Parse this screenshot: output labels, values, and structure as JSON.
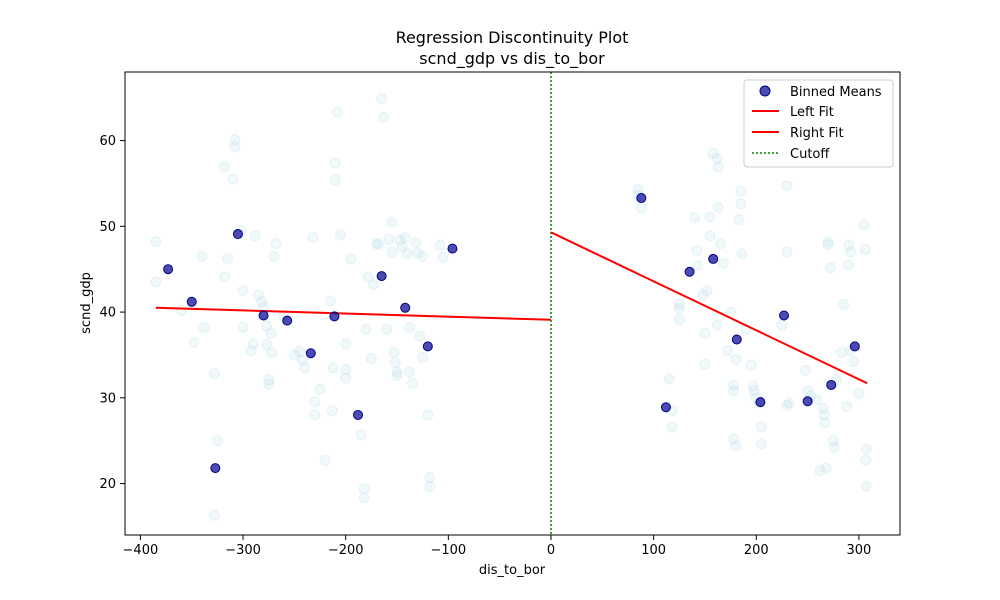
{
  "chart_data": {
    "type": "scatter",
    "title": "Regression Discontinuity Plot",
    "subtitle": "scnd_gdp vs dis_to_bor",
    "xlabel": "dis_to_bor",
    "ylabel": "scnd_gdp",
    "xlim": [
      -415,
      340
    ],
    "ylim": [
      14,
      68
    ],
    "xticks": [
      -400,
      -300,
      -200,
      -100,
      0,
      100,
      200,
      300
    ],
    "yticks": [
      20,
      30,
      40,
      50,
      60
    ],
    "grid": false,
    "legend_position": "top-right",
    "cutoff": 0,
    "raw_points": [
      [
        -385,
        48.2
      ],
      [
        -385,
        43.5
      ],
      [
        -360,
        40.2
      ],
      [
        -348,
        36.5
      ],
      [
        -340,
        46.5
      ],
      [
        -338,
        38.2
      ],
      [
        -328,
        32.8
      ],
      [
        -328,
        16.3
      ],
      [
        -325,
        25.0
      ],
      [
        -318,
        57.0
      ],
      [
        -318,
        44.1
      ],
      [
        -315,
        46.2
      ],
      [
        -310,
        55.5
      ],
      [
        -308,
        60.1
      ],
      [
        -308,
        59.3
      ],
      [
        -302,
        49.5
      ],
      [
        -300,
        42.5
      ],
      [
        -300,
        38.2
      ],
      [
        -292,
        35.5
      ],
      [
        -290,
        36.3
      ],
      [
        -288,
        48.9
      ],
      [
        -285,
        42.0
      ],
      [
        -282,
        41.2
      ],
      [
        -280,
        40.6
      ],
      [
        -277,
        38.4
      ],
      [
        -277,
        36.2
      ],
      [
        -275,
        32.1
      ],
      [
        -275,
        31.6
      ],
      [
        -273,
        37.5
      ],
      [
        -272,
        35.3
      ],
      [
        -270,
        46.5
      ],
      [
        -268,
        48.0
      ],
      [
        -260,
        39.5
      ],
      [
        -250,
        35.0
      ],
      [
        -245,
        35.4
      ],
      [
        -242,
        34.4
      ],
      [
        -240,
        33.5
      ],
      [
        -232,
        48.7
      ],
      [
        -230,
        29.5
      ],
      [
        -230,
        28.0
      ],
      [
        -225,
        31.0
      ],
      [
        -220,
        22.7
      ],
      [
        -215,
        41.3
      ],
      [
        -213,
        28.5
      ],
      [
        -212,
        33.5
      ],
      [
        -210,
        57.4
      ],
      [
        -210,
        55.4
      ],
      [
        -208,
        63.3
      ],
      [
        -205,
        49.0
      ],
      [
        -200,
        36.3
      ],
      [
        -200,
        33.3
      ],
      [
        -200,
        32.3
      ],
      [
        -195,
        46.2
      ],
      [
        -185,
        25.7
      ],
      [
        -182,
        19.4
      ],
      [
        -182,
        18.3
      ],
      [
        -180,
        38.0
      ],
      [
        -178,
        44.1
      ],
      [
        -175,
        34.6
      ],
      [
        -173,
        43.2
      ],
      [
        -170,
        48.0
      ],
      [
        -168,
        47.9
      ],
      [
        -165,
        64.9
      ],
      [
        -163,
        62.7
      ],
      [
        -160,
        38.0
      ],
      [
        -158,
        48.5
      ],
      [
        -155,
        50.5
      ],
      [
        -155,
        47.0
      ],
      [
        -153,
        35.3
      ],
      [
        -152,
        34.1
      ],
      [
        -150,
        33.0
      ],
      [
        -150,
        32.6
      ],
      [
        -147,
        48.4
      ],
      [
        -145,
        47.6
      ],
      [
        -142,
        48.7
      ],
      [
        -140,
        46.8
      ],
      [
        -138,
        38.2
      ],
      [
        -138,
        33.0
      ],
      [
        -135,
        31.7
      ],
      [
        -132,
        48.1
      ],
      [
        -130,
        46.9
      ],
      [
        -128,
        37.2
      ],
      [
        -125,
        46.5
      ],
      [
        -125,
        34.7
      ],
      [
        -120,
        28.0
      ],
      [
        -118,
        20.7
      ],
      [
        -118,
        19.6
      ],
      [
        -108,
        47.8
      ],
      [
        -105,
        46.4
      ],
      [
        85,
        54.3
      ],
      [
        85,
        53.6
      ],
      [
        88,
        52.1
      ],
      [
        115,
        32.2
      ],
      [
        118,
        26.6
      ],
      [
        118,
        28.5
      ],
      [
        125,
        40.9
      ],
      [
        125,
        40.4
      ],
      [
        125,
        39.1
      ],
      [
        140,
        51.0
      ],
      [
        142,
        47.2
      ],
      [
        143,
        45.4
      ],
      [
        148,
        42.0
      ],
      [
        150,
        37.5
      ],
      [
        150,
        33.9
      ],
      [
        152,
        42.5
      ],
      [
        155,
        51.1
      ],
      [
        155,
        48.9
      ],
      [
        158,
        58.5
      ],
      [
        162,
        57.9
      ],
      [
        163,
        56.9
      ],
      [
        162,
        38.5
      ],
      [
        163,
        52.2
      ],
      [
        165,
        48.0
      ],
      [
        168,
        45.7
      ],
      [
        172,
        35.5
      ],
      [
        175,
        40.0
      ],
      [
        178,
        31.5
      ],
      [
        178,
        30.8
      ],
      [
        178,
        25.2
      ],
      [
        180,
        24.4
      ],
      [
        180,
        34.5
      ],
      [
        183,
        50.8
      ],
      [
        185,
        54.1
      ],
      [
        185,
        52.6
      ],
      [
        186,
        46.8
      ],
      [
        190,
        38.0
      ],
      [
        195,
        33.8
      ],
      [
        197,
        31.4
      ],
      [
        198,
        30.8
      ],
      [
        200,
        30.0
      ],
      [
        203,
        29.4
      ],
      [
        205,
        26.6
      ],
      [
        205,
        24.6
      ],
      [
        225,
        38.5
      ],
      [
        230,
        54.7
      ],
      [
        230,
        47.0
      ],
      [
        230,
        29.1
      ],
      [
        232,
        29.4
      ],
      [
        248,
        33.2
      ],
      [
        250,
        30.8
      ],
      [
        253,
        30.2
      ],
      [
        258,
        29.8
      ],
      [
        262,
        21.5
      ],
      [
        265,
        28.8
      ],
      [
        266,
        28.0
      ],
      [
        267,
        27.1
      ],
      [
        268,
        21.8
      ],
      [
        270,
        48.2
      ],
      [
        270,
        47.9
      ],
      [
        272,
        45.2
      ],
      [
        275,
        25.0
      ],
      [
        276,
        24.2
      ],
      [
        278,
        32.0
      ],
      [
        283,
        35.3
      ],
      [
        285,
        40.9
      ],
      [
        288,
        29.0
      ],
      [
        290,
        47.8
      ],
      [
        292,
        47.0
      ],
      [
        290,
        45.5
      ],
      [
        292,
        35.5
      ],
      [
        295,
        34.2
      ],
      [
        300,
        30.5
      ],
      [
        305,
        50.2
      ],
      [
        306,
        47.3
      ],
      [
        307,
        24.0
      ],
      [
        307,
        22.7
      ],
      [
        307,
        19.7
      ]
    ],
    "series": [
      {
        "name": "Binned Means",
        "type": "scatter",
        "color": "#00008b",
        "points": [
          [
            -373,
            45.0
          ],
          [
            -350,
            41.2
          ],
          [
            -327,
            21.8
          ],
          [
            -305,
            49.1
          ],
          [
            -280,
            39.6
          ],
          [
            -257,
            39.0
          ],
          [
            -234,
            35.2
          ],
          [
            -211,
            39.5
          ],
          [
            -188,
            28.0
          ],
          [
            -165,
            44.2
          ],
          [
            -142,
            40.5
          ],
          [
            -120,
            36.0
          ],
          [
            -96,
            47.4
          ],
          [
            88,
            53.3
          ],
          [
            112,
            28.9
          ],
          [
            135,
            44.7
          ],
          [
            158,
            46.2
          ],
          [
            181,
            36.8
          ],
          [
            204,
            29.5
          ],
          [
            227,
            39.6
          ],
          [
            250,
            29.6
          ],
          [
            273,
            31.5
          ],
          [
            296,
            36.0
          ]
        ]
      },
      {
        "name": "Left Fit",
        "type": "line",
        "color": "#ff0000",
        "points": [
          [
            -385,
            40.5
          ],
          [
            0,
            39.1
          ]
        ]
      },
      {
        "name": "Right Fit",
        "type": "line",
        "color": "#ff0000",
        "points": [
          [
            0,
            49.3
          ],
          [
            308,
            31.7
          ]
        ]
      },
      {
        "name": "Cutoff",
        "type": "vline",
        "color": "#008000",
        "x": 0
      }
    ],
    "colors": {
      "raw_points": "#add8e6",
      "axes": "#000000"
    }
  }
}
